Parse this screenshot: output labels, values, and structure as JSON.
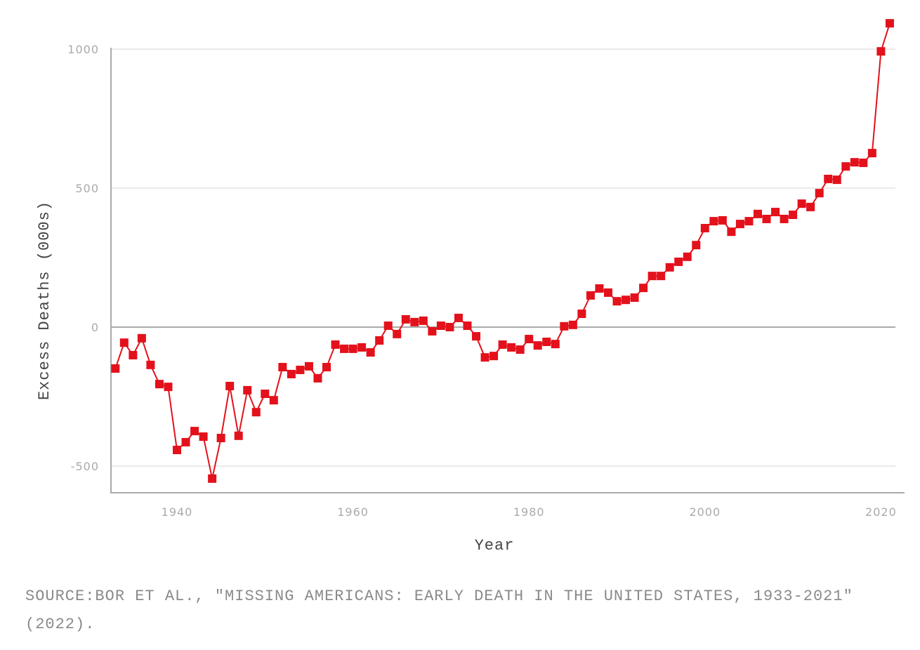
{
  "chart_data": {
    "type": "line",
    "title": "",
    "xlabel": "Year",
    "ylabel": "Excess Deaths (000s)",
    "xlim": [
      1933,
      2021
    ],
    "ylim": [
      -600,
      1100
    ],
    "x_ticks": [
      1940,
      1960,
      1980,
      2000,
      2020
    ],
    "y_ticks": [
      -500,
      0,
      500,
      1000
    ],
    "grid": "horizontal",
    "marker": "square",
    "color": "#e3111b",
    "x": [
      1933,
      1934,
      1935,
      1936,
      1937,
      1938,
      1939,
      1940,
      1941,
      1942,
      1943,
      1944,
      1945,
      1946,
      1947,
      1948,
      1949,
      1950,
      1951,
      1952,
      1953,
      1954,
      1955,
      1956,
      1957,
      1958,
      1959,
      1960,
      1961,
      1962,
      1963,
      1964,
      1965,
      1966,
      1967,
      1968,
      1969,
      1970,
      1971,
      1972,
      1973,
      1974,
      1975,
      1976,
      1977,
      1978,
      1979,
      1980,
      1981,
      1982,
      1983,
      1984,
      1985,
      1986,
      1987,
      1988,
      1989,
      1990,
      1991,
      1992,
      1993,
      1994,
      1995,
      1996,
      1997,
      1998,
      1999,
      2000,
      2001,
      2002,
      2003,
      2004,
      2005,
      2006,
      2007,
      2008,
      2009,
      2010,
      2011,
      2012,
      2013,
      2014,
      2015,
      2016,
      2017,
      2018,
      2019,
      2020,
      2021
    ],
    "values": [
      -149,
      -56,
      -101,
      -40,
      -136,
      -205,
      -215,
      -442,
      -414,
      -374,
      -394,
      -545,
      -399,
      -212,
      -391,
      -227,
      -306,
      -240,
      -263,
      -144,
      -169,
      -154,
      -141,
      -184,
      -144,
      -63,
      -78,
      -78,
      -73,
      -91,
      -48,
      5,
      -25,
      28,
      18,
      23,
      -15,
      5,
      0,
      33,
      5,
      -33,
      -109,
      -104,
      -63,
      -73,
      -81,
      -43,
      -66,
      -53,
      -61,
      3,
      8,
      48,
      114,
      139,
      124,
      93,
      98,
      106,
      141,
      184,
      184,
      215,
      235,
      253,
      295,
      356,
      381,
      384,
      343,
      371,
      381,
      407,
      389,
      414,
      389,
      404,
      444,
      432,
      482,
      533,
      530,
      578,
      593,
      591,
      626,
      992,
      1093
    ]
  },
  "source": "SOURCE:BOR ET AL., \"MISSING AMERICANS: EARLY DEATH IN THE UNITED STATES, 1933-2021\" (2022)."
}
